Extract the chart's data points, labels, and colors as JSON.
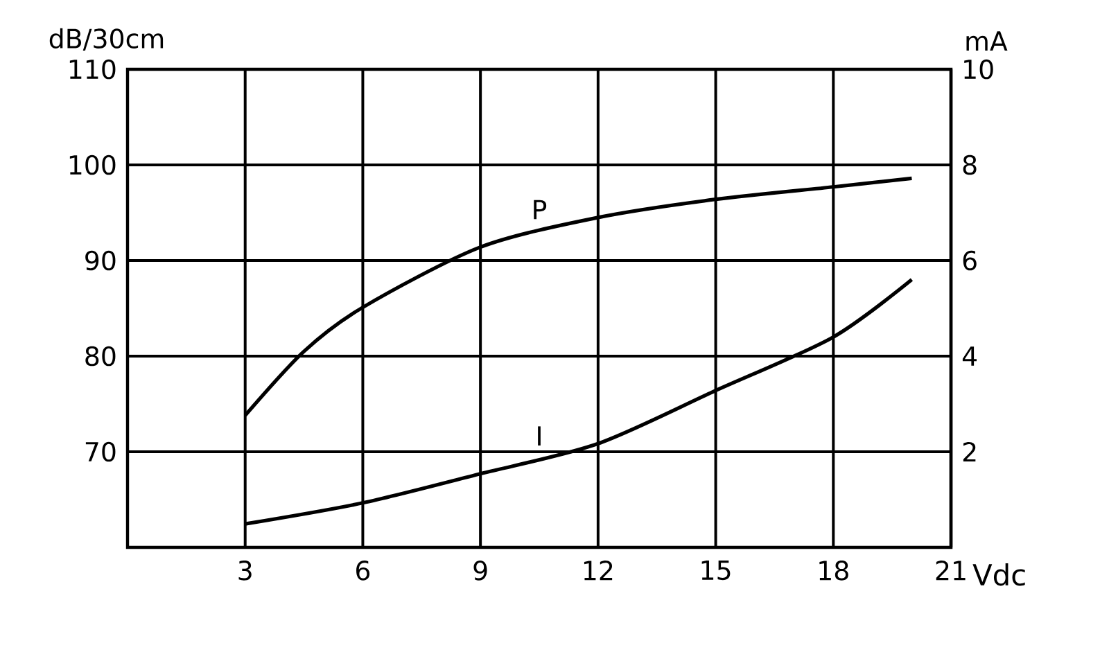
{
  "chart_data": {
    "type": "line",
    "xlabel": "Vdc",
    "ylabel": "dB/30cm",
    "y2label": "mA",
    "xlim": [
      0,
      21
    ],
    "xticks": [
      3,
      6,
      9,
      12,
      15,
      18,
      21
    ],
    "ylim": [
      60,
      110
    ],
    "yticks": [
      70,
      80,
      90,
      100,
      110
    ],
    "y2lim": [
      0,
      10
    ],
    "y2ticks": [
      2,
      4,
      6,
      8,
      10
    ],
    "grid": true,
    "legend": false,
    "marker": "none",
    "line_style": "solid",
    "series": [
      {
        "name": "P",
        "color": "#000000",
        "x": [
          3,
          4.5,
          6,
          9,
          12,
          15,
          18,
          20
        ],
        "values": [
          73.8,
          80.5,
          85.1,
          91.4,
          94.5,
          96.4,
          97.7,
          98.6
        ]
      },
      {
        "name": "I",
        "color": "#000000",
        "axis": "y2",
        "x": [
          3,
          6,
          9,
          12,
          15,
          18,
          20
        ],
        "values": [
          0.49,
          0.93,
          1.54,
          2.17,
          3.28,
          4.4,
          5.6
        ]
      }
    ]
  }
}
